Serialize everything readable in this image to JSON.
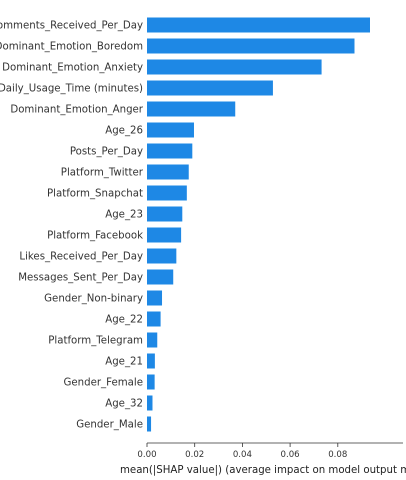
{
  "chart_data": {
    "type": "bar",
    "orientation": "horizontal",
    "color": "#1E88E5",
    "categories": [
      "Comments_Received_Per_Day",
      "Dominant_Emotion_Boredom",
      "Dominant_Emotion_Anxiety",
      "Daily_Usage_Time (minutes)",
      "Dominant_Emotion_Anger",
      "Age_26",
      "Posts_Per_Day",
      "Platform_Twitter",
      "Platform_Snapchat",
      "Age_23",
      "Platform_Facebook",
      "Likes_Received_Per_Day",
      "Messages_Sent_Per_Day",
      "Gender_Non-binary",
      "Age_22",
      "Platform_Telegram",
      "Age_21",
      "Gender_Female",
      "Age_32",
      "Gender_Male"
    ],
    "values": [
      0.0935,
      0.087,
      0.0732,
      0.0528,
      0.037,
      0.0197,
      0.019,
      0.0175,
      0.0167,
      0.0148,
      0.0143,
      0.0123,
      0.011,
      0.0063,
      0.0057,
      0.0043,
      0.0033,
      0.0032,
      0.0023,
      0.0017
    ],
    "xticks": [
      "0.00",
      "0.02",
      "0.04",
      "0.06",
      "0.08"
    ],
    "xlim": [
      0,
      0.1
    ],
    "xlabel": "mean(|SHAP value|) (average impact on model output magni",
    "grid": false
  }
}
